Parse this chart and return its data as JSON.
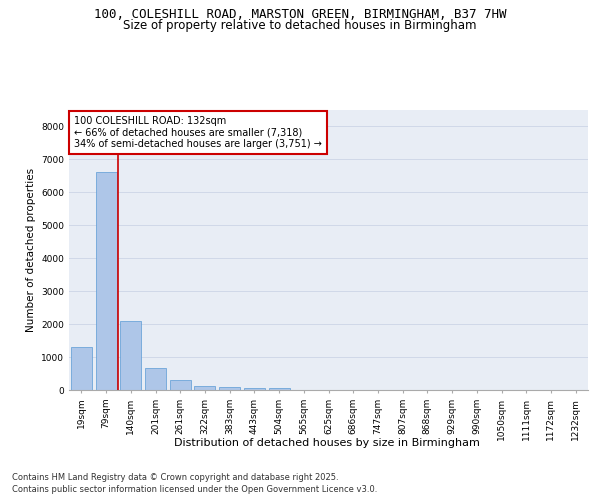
{
  "title_line1": "100, COLESHILL ROAD, MARSTON GREEN, BIRMINGHAM, B37 7HW",
  "title_line2": "Size of property relative to detached houses in Birmingham",
  "xlabel": "Distribution of detached houses by size in Birmingham",
  "ylabel": "Number of detached properties",
  "categories": [
    "19sqm",
    "79sqm",
    "140sqm",
    "201sqm",
    "261sqm",
    "322sqm",
    "383sqm",
    "443sqm",
    "504sqm",
    "565sqm",
    "625sqm",
    "686sqm",
    "747sqm",
    "807sqm",
    "868sqm",
    "929sqm",
    "990sqm",
    "1050sqm",
    "1111sqm",
    "1172sqm",
    "1232sqm"
  ],
  "values": [
    1300,
    6620,
    2100,
    670,
    300,
    130,
    80,
    50,
    50,
    0,
    0,
    0,
    0,
    0,
    0,
    0,
    0,
    0,
    0,
    0,
    0
  ],
  "bar_color": "#aec6e8",
  "bar_edge_color": "#5b9bd5",
  "vline_index": 2,
  "vline_color": "#cc0000",
  "annotation_text": "100 COLESHILL ROAD: 132sqm\n← 66% of detached houses are smaller (7,318)\n34% of semi-detached houses are larger (3,751) →",
  "annotation_box_color": "#ffffff",
  "annotation_box_edge": "#cc0000",
  "ylim": [
    0,
    8500
  ],
  "yticks": [
    0,
    1000,
    2000,
    3000,
    4000,
    5000,
    6000,
    7000,
    8000
  ],
  "grid_color": "#d0d8e8",
  "background_color": "#e8edf5",
  "footer_line1": "Contains HM Land Registry data © Crown copyright and database right 2025.",
  "footer_line2": "Contains public sector information licensed under the Open Government Licence v3.0.",
  "title_fontsize": 9,
  "subtitle_fontsize": 8.5,
  "xlabel_fontsize": 8,
  "ylabel_fontsize": 7.5,
  "tick_fontsize": 6.5,
  "footer_fontsize": 6,
  "ann_fontsize": 7
}
